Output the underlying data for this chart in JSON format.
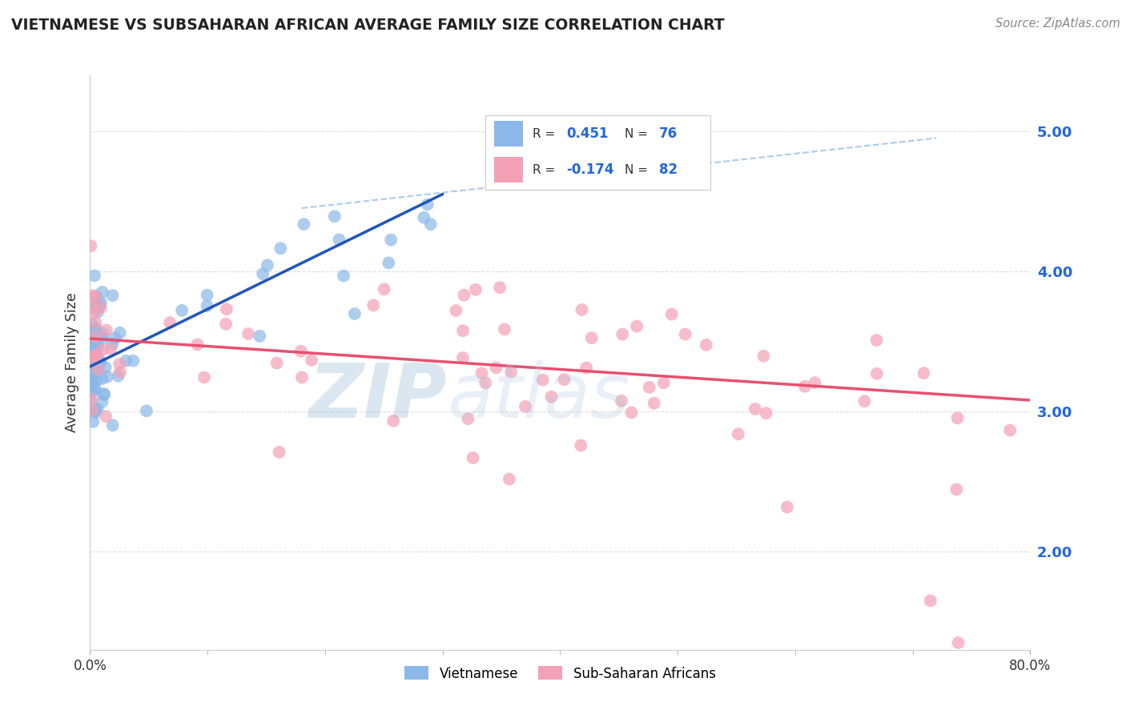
{
  "title": "VIETNAMESE VS SUBSAHARAN AFRICAN AVERAGE FAMILY SIZE CORRELATION CHART",
  "source_text": "Source: ZipAtlas.com",
  "ylabel": "Average Family Size",
  "watermark_text": "ZIP",
  "watermark_text2": "atlas",
  "legend_r1": "R =  0.451",
  "legend_n1": "N = 76",
  "legend_r2": "R = -0.174",
  "legend_n2": "N = 82",
  "legend_label1": "Vietnamese",
  "legend_label2": "Sub-Saharan Africans",
  "right_yticks": [
    2.0,
    3.0,
    4.0,
    5.0
  ],
  "xlim": [
    0.0,
    80.0
  ],
  "ylim": [
    1.3,
    5.4
  ],
  "blue_scatter_color": "#8BB8E8",
  "pink_scatter_color": "#F4A0B5",
  "blue_line_color": "#2255BB",
  "pink_line_color": "#E85070",
  "dashed_line_color": "#AACCEE",
  "background_color": "#FFFFFF",
  "grid_color": "#DDDDDD",
  "title_color": "#222222",
  "source_color": "#888888",
  "viet_line_x0": 0.0,
  "viet_line_y0": 3.32,
  "viet_line_x1": 30.0,
  "viet_line_y1": 4.55,
  "afr_line_x0": 0.0,
  "afr_line_y0": 3.52,
  "afr_line_x1": 80.0,
  "afr_line_y1": 3.08,
  "dash_line_x0": 18.0,
  "dash_line_y0": 4.45,
  "dash_line_x1": 72.0,
  "dash_line_y1": 4.95
}
